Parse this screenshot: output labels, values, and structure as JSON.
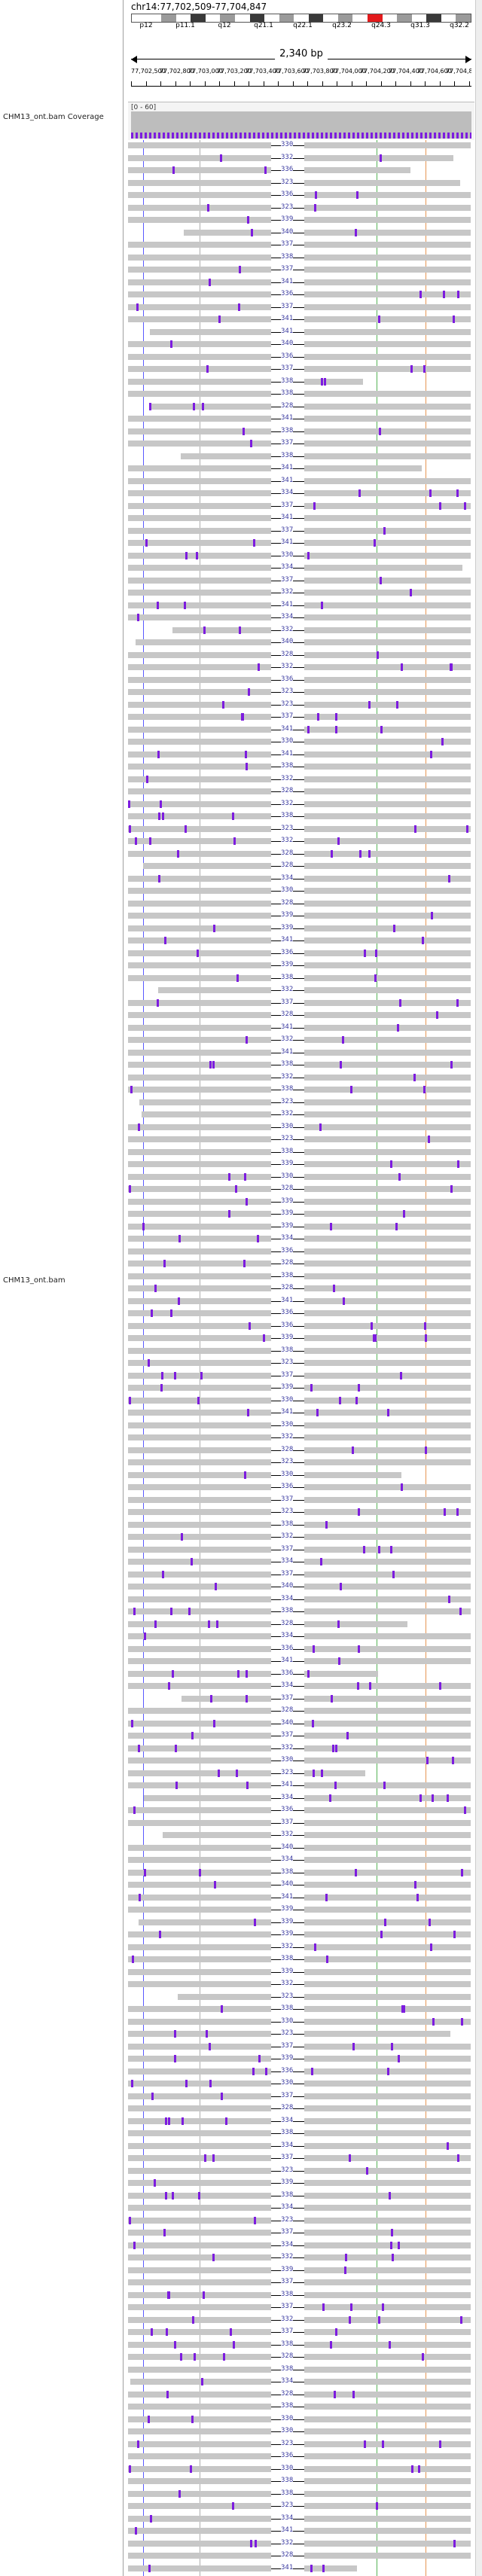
{
  "locus": "chr14:77,702,509-77,704,847",
  "width_label": "2,340 bp",
  "bands": [
    "p12",
    "p11.1",
    "q12",
    "q21.1",
    "q22.1",
    "q23.2",
    "q24.3",
    "q31.3",
    "q32.2"
  ],
  "tick_labels": [
    "77,702,500",
    "77,702,800",
    "77,703,000",
    "77,703,200",
    "77,703,400",
    "77,703,600",
    "77,703,800",
    "77,704,000",
    "77,704,200",
    "77,704,400",
    "77,704,600",
    "77,704,800"
  ],
  "tracks": {
    "coverage_name": "CHM13_ont.bam Coverage",
    "coverage_range": "[0 - 60]",
    "alignment_name": "CHM13_ont.bam"
  },
  "insertion_lengths": [
    "338",
    "330",
    "336",
    "328",
    "341",
    "334",
    "332",
    "337",
    "339",
    "340",
    "323"
  ],
  "colors": {
    "read": "#c7c7c7",
    "insertion": "#7d1cdf",
    "deletion": "#000000",
    "coverage": "#bdbdbd",
    "highlight": "#e31a1c"
  }
}
